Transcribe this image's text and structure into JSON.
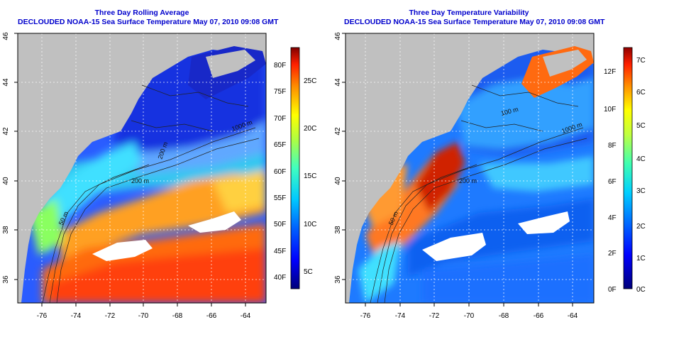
{
  "panels": [
    {
      "title": "Three Day Rolling Average",
      "subtitle": "DECLOUDED NOAA-15 Sea Surface Temperature May 07, 2010 09:08 GMT",
      "type": "average",
      "x_ticks": [
        "-76",
        "-74",
        "-72",
        "-70",
        "-68",
        "-66",
        "-64"
      ],
      "y_ticks": [
        "36",
        "38",
        "40",
        "42",
        "44",
        "46"
      ],
      "colorbar_f": [
        "40F",
        "45F",
        "50F",
        "55F",
        "60F",
        "65F",
        "70F",
        "75F",
        "80F"
      ],
      "colorbar_c": [
        "5C",
        "10C",
        "15C",
        "20C",
        "25C"
      ],
      "contour_labels": [
        "200 m",
        "50 m",
        "1000 m",
        "200 m"
      ]
    },
    {
      "title": "Three Day Temperature Variability",
      "subtitle": "DECLOUDED NOAA-15 Sea Surface Temperature May 07, 2010 09:08 GMT",
      "type": "variability",
      "x_ticks": [
        "-76",
        "-74",
        "-72",
        "-70",
        "-68",
        "-66",
        "-64"
      ],
      "y_ticks": [
        "36",
        "38",
        "40",
        "42",
        "44",
        "46"
      ],
      "colorbar_f": [
        "0F",
        "2F",
        "4F",
        "6F",
        "8F",
        "10F",
        "12F"
      ],
      "colorbar_c": [
        "0C",
        "1C",
        "2C",
        "3C",
        "4C",
        "5C",
        "6C",
        "7C"
      ],
      "contour_labels": [
        "100 m",
        "200 m",
        "50 m",
        "1000 m"
      ]
    }
  ],
  "colors": {
    "land": "#c0c0c0",
    "title": "#0000cc",
    "missing": "#ffffff"
  }
}
